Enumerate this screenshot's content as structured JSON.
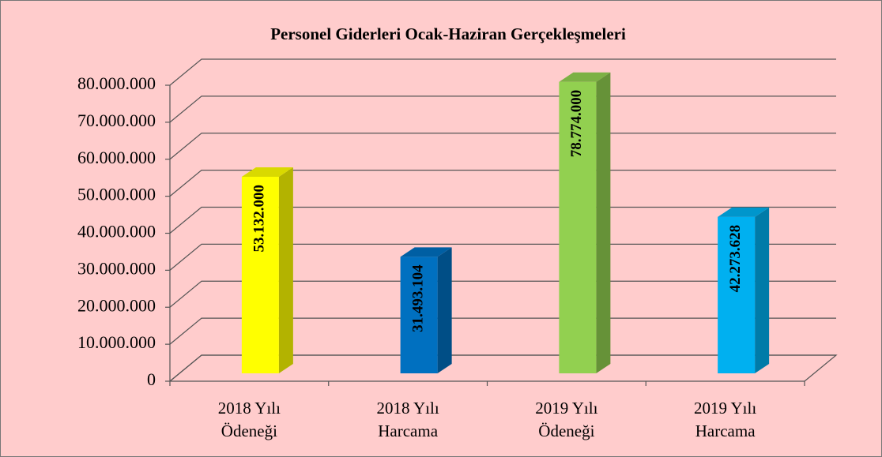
{
  "chart_data": {
    "type": "bar3d",
    "title": "Personel Giderleri Ocak-Haziran Gerçekleşmeleri",
    "categories": [
      [
        "2018 Yılı",
        "Ödeneği"
      ],
      [
        "2018 Yılı",
        "Harcama"
      ],
      [
        "2019 Yılı",
        "Ödeneği"
      ],
      [
        "2019 Yılı",
        "Harcama"
      ]
    ],
    "values": [
      53132000,
      31493104,
      78774000,
      42273628
    ],
    "value_labels": [
      "53.132.000",
      "31.493.104",
      "78.774.000",
      "42.273.628"
    ],
    "colors": [
      "#ffff00",
      "#0070c0",
      "#92d050",
      "#00b0f0"
    ],
    "ylim": [
      0,
      80000000
    ],
    "yticks": [
      0,
      {
        "value": 10000000,
        "label": "10.000.000"
      },
      {
        "value": 20000000,
        "label": "20.000.000"
      },
      {
        "value": 30000000,
        "label": "30.000.000"
      },
      {
        "value": 40000000,
        "label": "40.000.000"
      },
      {
        "value": 50000000,
        "label": "50.000.000"
      },
      {
        "value": 60000000,
        "label": "60.000.000"
      },
      {
        "value": 70000000,
        "label": "70.000.000"
      },
      {
        "value": 80000000,
        "label": "80.000.000"
      }
    ],
    "grid": true
  }
}
